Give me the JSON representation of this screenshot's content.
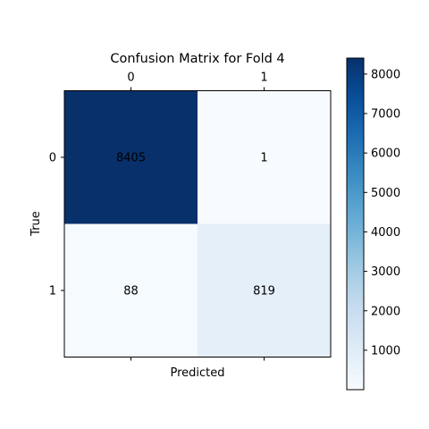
{
  "chart_data": {
    "type": "heatmap",
    "title": "Confusion Matrix for Fold 4",
    "xlabel": "Predicted",
    "ylabel": "True",
    "x_categories": [
      "0",
      "1"
    ],
    "y_categories": [
      "0",
      "1"
    ],
    "values": [
      [
        8405,
        1
      ],
      [
        88,
        819
      ]
    ],
    "colormap": "Blues",
    "colorbar": {
      "min": 1,
      "max": 8405,
      "ticks": [
        1000,
        2000,
        3000,
        4000,
        5000,
        6000,
        7000,
        8000
      ]
    },
    "x_tick_position": "top",
    "grid": false
  }
}
